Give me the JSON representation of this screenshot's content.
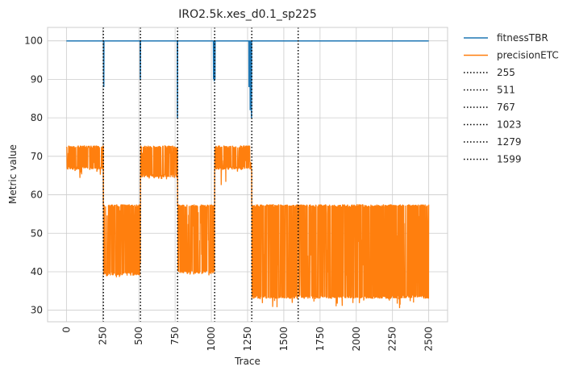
{
  "chart_data": {
    "type": "line",
    "title": "IRO2.5k.xes_d0.1_sp225",
    "xlabel": "Trace",
    "ylabel": "Metric value",
    "xlim": [
      -130,
      2630
    ],
    "ylim": [
      27,
      103.5
    ],
    "x_ticks": [
      "0",
      "250",
      "500",
      "750",
      "1000",
      "1250",
      "1500",
      "1750",
      "2000",
      "2250",
      "2500"
    ],
    "y_ticks": [
      "30",
      "40",
      "50",
      "60",
      "70",
      "80",
      "90",
      "100"
    ],
    "grid": true,
    "legend_position": "outside-right",
    "series": [
      {
        "name": "fitnessTBR",
        "color": "#1f77b4",
        "baseline": 100,
        "dips": [
          {
            "x": 258,
            "y": 88
          },
          {
            "x": 510,
            "y": 90
          },
          {
            "x": 766,
            "y": 80
          },
          {
            "x": 1015,
            "y": 90
          },
          {
            "x": 1020,
            "y": 89.5
          },
          {
            "x": 1025,
            "y": 90
          },
          {
            "x": 1260,
            "y": 88
          },
          {
            "x": 1268,
            "y": 82
          },
          {
            "x": 1277,
            "y": 80
          }
        ]
      },
      {
        "name": "precisionETC",
        "color": "#ff7f0e",
        "segments": [
          {
            "x_start": 0,
            "x_end": 255,
            "low": 66.5,
            "high": 72.8,
            "min_spike": 63.5
          },
          {
            "x_start": 255,
            "x_end": 511,
            "low": 39,
            "high": 57.5,
            "min_spike": 38.5
          },
          {
            "x_start": 511,
            "x_end": 767,
            "low": 64.5,
            "high": 72.8,
            "min_spike": 64
          },
          {
            "x_start": 767,
            "x_end": 1023,
            "low": 39.5,
            "high": 57.5,
            "min_spike": 38.5
          },
          {
            "x_start": 1023,
            "x_end": 1279,
            "low": 66.5,
            "high": 72.8,
            "min_spike": 61
          },
          {
            "x_start": 1279,
            "x_end": 2500,
            "low": 33,
            "high": 57.5,
            "min_spike": 30.5
          }
        ]
      }
    ],
    "vlines": [
      {
        "label": "255",
        "x": 255,
        "style": "dotted",
        "color": "#000000"
      },
      {
        "label": "511",
        "x": 511,
        "style": "dotted",
        "color": "#000000"
      },
      {
        "label": "767",
        "x": 767,
        "style": "dotted",
        "color": "#000000"
      },
      {
        "label": "1023",
        "x": 1023,
        "style": "dotted",
        "color": "#000000"
      },
      {
        "label": "1279",
        "x": 1279,
        "style": "dotted",
        "color": "#000000"
      },
      {
        "label": "1599",
        "x": 1599,
        "style": "dotted",
        "color": "#000000"
      }
    ]
  }
}
